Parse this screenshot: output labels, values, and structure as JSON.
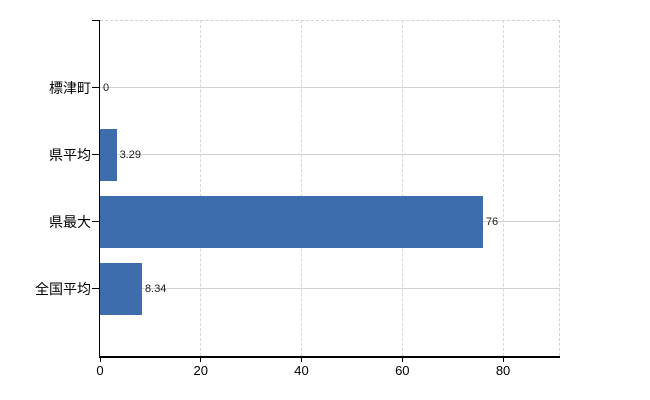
{
  "chart_data": {
    "type": "bar",
    "orientation": "horizontal",
    "title": "",
    "xlabel": "",
    "ylabel": "",
    "categories": [
      "標津町",
      "県平均",
      "県最大",
      "全国平均"
    ],
    "values": [
      0,
      3.29,
      76,
      8.34
    ],
    "value_labels": [
      "0",
      "3.29",
      "76",
      "8.34"
    ],
    "x_ticks": [
      0,
      20,
      40,
      60,
      80
    ],
    "x_tick_labels": [
      "0",
      "20",
      "40",
      "60",
      "80"
    ],
    "xlim": [
      0,
      91.3
    ],
    "grid": true,
    "legend": false,
    "colors": {
      "bar": "#3d6dac",
      "h_gridline": "#ccd4cc",
      "v_gridline": "#d7d4da",
      "axis": "#000000",
      "text": "#000000",
      "value_text": "#1c1c1c",
      "background": "#ffffff"
    }
  }
}
